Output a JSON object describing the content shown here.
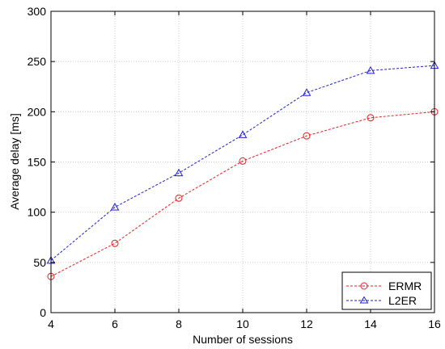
{
  "chart_data": {
    "type": "line",
    "xlabel": "Number of sessions",
    "ylabel": "Average delay [ms]",
    "xlim": [
      4,
      16
    ],
    "ylim": [
      0,
      300
    ],
    "xticks": [
      4,
      6,
      8,
      10,
      12,
      14,
      16
    ],
    "yticks": [
      0,
      50,
      100,
      150,
      200,
      250,
      300
    ],
    "grid": true,
    "legend_position": "bottom-right",
    "x": [
      4,
      6,
      8,
      10,
      12,
      14,
      16
    ],
    "series": [
      {
        "name": "ERMR",
        "values": [
          36,
          69,
          114,
          151,
          176,
          194,
          200
        ],
        "color": "#e02020",
        "marker": "circle",
        "line_style": "dashed"
      },
      {
        "name": "L2ER",
        "values": [
          52,
          105,
          139,
          177,
          219,
          241,
          246
        ],
        "color": "#2020cc",
        "marker": "triangle",
        "line_style": "dashed"
      }
    ]
  }
}
